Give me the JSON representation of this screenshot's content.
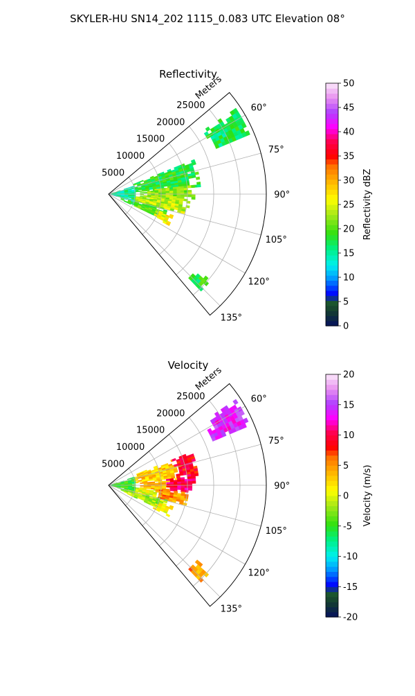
{
  "suptitle": "SKYLER-HU  SN14_202  1115_0.083 UTC Elevation 08°",
  "chart_data": [
    {
      "type": "heatmap",
      "projection": "polar-sector",
      "title": "Reflectivity",
      "radial_axis_label": "Meters",
      "radial_ticks": [
        "5000",
        "10000",
        "15000",
        "20000",
        "25000"
      ],
      "radial_tick_values": [
        5000,
        10000,
        15000,
        20000,
        25000
      ],
      "radial_range": [
        0,
        30000
      ],
      "azimuth_range_deg": [
        50,
        140
      ],
      "azimuth_ticks": [
        "60°",
        "75°",
        "90°",
        "105°",
        "120°",
        "135°"
      ],
      "azimuth_tick_values": [
        60,
        75,
        90,
        105,
        120,
        135
      ],
      "grid": true,
      "colorbar": {
        "label": "Reflectivity dBZ",
        "range": [
          0,
          50
        ],
        "ticks": [
          "0",
          "5",
          "10",
          "15",
          "20",
          "25",
          "30",
          "35",
          "40",
          "45",
          "50"
        ],
        "tick_values": [
          0,
          5,
          10,
          15,
          20,
          25,
          30,
          35,
          40,
          45,
          50
        ],
        "placement": "right"
      },
      "echo_regions": [
        {
          "az_range": [
            56,
            67
          ],
          "r_range": [
            21500,
            29000
          ],
          "value": 17
        },
        {
          "az_range": [
            68,
            84
          ],
          "r_range": [
            5000,
            17000
          ],
          "value": 18
        },
        {
          "az_range": [
            84,
            95
          ],
          "r_range": [
            6000,
            16000
          ],
          "value": 22
        },
        {
          "az_range": [
            95,
            104
          ],
          "r_range": [
            3000,
            15000
          ],
          "value": 24
        },
        {
          "az_range": [
            104,
            114
          ],
          "r_range": [
            2500,
            11500
          ],
          "value": 20
        },
        {
          "az_range": [
            72,
            106
          ],
          "r_range": [
            0,
            5000
          ],
          "value": 15
        },
        {
          "az_range": [
            108,
            116
          ],
          "r_range": [
            9500,
            12500
          ],
          "value": 26
        },
        {
          "az_range": [
            130,
            136
          ],
          "r_range": [
            22000,
            25000
          ],
          "value": 18
        }
      ]
    },
    {
      "type": "heatmap",
      "projection": "polar-sector",
      "title": "Velocity",
      "radial_axis_label": "Meters",
      "radial_ticks": [
        "5000",
        "10000",
        "15000",
        "20000",
        "25000"
      ],
      "radial_tick_values": [
        5000,
        10000,
        15000,
        20000,
        25000
      ],
      "radial_range": [
        0,
        30000
      ],
      "azimuth_range_deg": [
        50,
        140
      ],
      "azimuth_ticks": [
        "60°",
        "75°",
        "90°",
        "105°",
        "120°",
        "135°"
      ],
      "azimuth_tick_values": [
        60,
        75,
        90,
        105,
        120,
        135
      ],
      "grid": true,
      "colorbar": {
        "label": "Velocity (m/s)",
        "range": [
          -20,
          20
        ],
        "ticks": [
          "-20",
          "-15",
          "-10",
          "-5",
          "0",
          "5",
          "10",
          "15",
          "20"
        ],
        "tick_values": [
          -20,
          -15,
          -10,
          -5,
          0,
          5,
          10,
          15,
          20
        ],
        "placement": "right"
      },
      "echo_regions": [
        {
          "az_range": [
            56,
            67
          ],
          "r_range": [
            21500,
            29000
          ],
          "value": 14
        },
        {
          "az_range": [
            68,
            84
          ],
          "r_range": [
            5000,
            13000
          ],
          "value": 3
        },
        {
          "az_range": [
            68,
            84
          ],
          "r_range": [
            13000,
            17000
          ],
          "value": 9
        },
        {
          "az_range": [
            84,
            95
          ],
          "r_range": [
            6000,
            11000
          ],
          "value": 4
        },
        {
          "az_range": [
            84,
            95
          ],
          "r_range": [
            11000,
            16000
          ],
          "value": 10
        },
        {
          "az_range": [
            95,
            104
          ],
          "r_range": [
            3000,
            9000
          ],
          "value": 0
        },
        {
          "az_range": [
            95,
            104
          ],
          "r_range": [
            9000,
            15000
          ],
          "value": 5
        },
        {
          "az_range": [
            104,
            114
          ],
          "r_range": [
            2500,
            11500
          ],
          "value": -2
        },
        {
          "az_range": [
            72,
            106
          ],
          "r_range": [
            0,
            5000
          ],
          "value": -5
        },
        {
          "az_range": [
            108,
            116
          ],
          "r_range": [
            9500,
            12500
          ],
          "value": 1
        },
        {
          "az_range": [
            130,
            136
          ],
          "r_range": [
            22000,
            25000
          ],
          "value": 5
        }
      ]
    }
  ]
}
